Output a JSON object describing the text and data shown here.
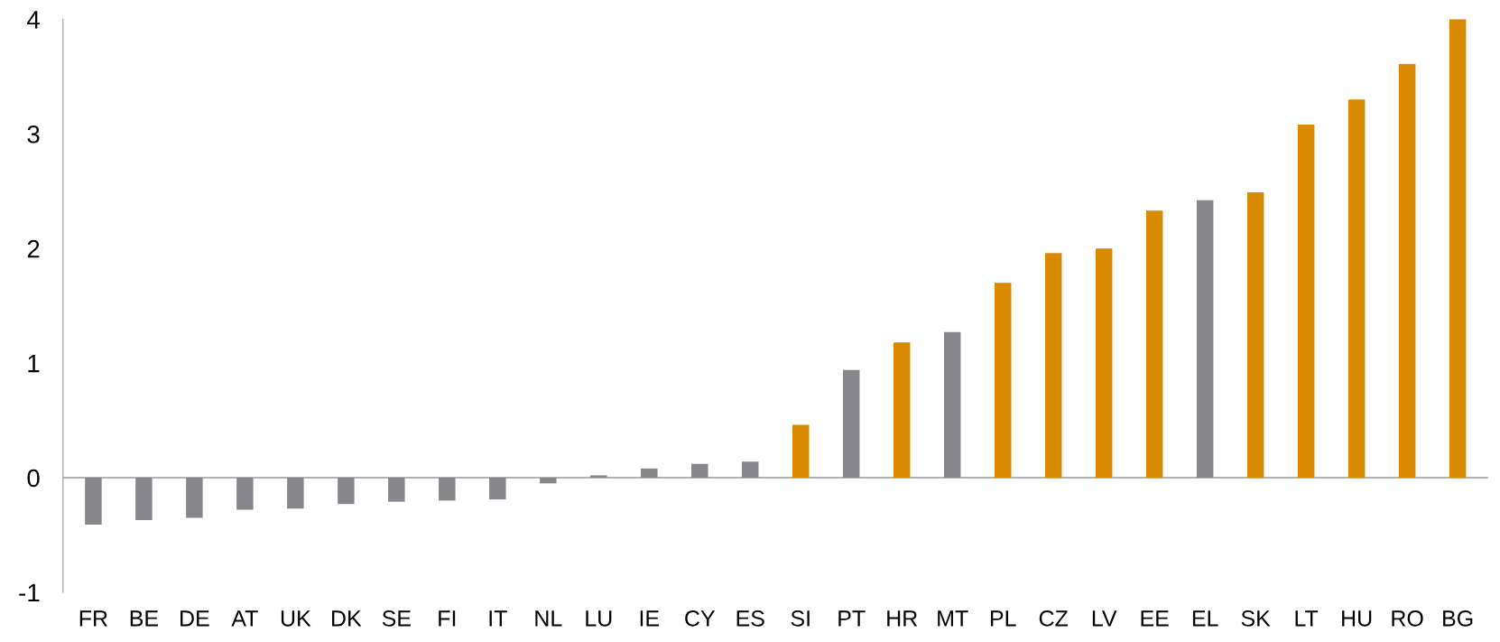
{
  "chart_data": {
    "type": "bar",
    "categories": [
      "FR",
      "BE",
      "DE",
      "AT",
      "UK",
      "DK",
      "SE",
      "FI",
      "IT",
      "NL",
      "LU",
      "IE",
      "CY",
      "ES",
      "SI",
      "PT",
      "HR",
      "MT",
      "PL",
      "CZ",
      "LV",
      "EE",
      "EL",
      "SK",
      "LT",
      "HU",
      "RO",
      "BG"
    ],
    "values": [
      -0.41,
      -0.37,
      -0.35,
      -0.28,
      -0.27,
      -0.23,
      -0.21,
      -0.2,
      -0.19,
      -0.05,
      0.02,
      0.08,
      0.12,
      0.14,
      0.46,
      0.94,
      1.18,
      1.27,
      1.7,
      1.96,
      2.0,
      2.33,
      2.42,
      2.49,
      3.08,
      3.3,
      3.61,
      4.0
    ],
    "colors": [
      "#87868b",
      "#87868b",
      "#87868b",
      "#87868b",
      "#87868b",
      "#87868b",
      "#87868b",
      "#87868b",
      "#87868b",
      "#87868b",
      "#87868b",
      "#87868b",
      "#87868b",
      "#87868b",
      "#d98a00",
      "#87868b",
      "#d98a00",
      "#87868b",
      "#d98a00",
      "#d98a00",
      "#d98a00",
      "#d98a00",
      "#87868b",
      "#d98a00",
      "#d98a00",
      "#d98a00",
      "#d98a00",
      "#d98a00"
    ],
    "ylim": [
      -1,
      4
    ],
    "yticks": [
      -1,
      0,
      1,
      2,
      3,
      4
    ],
    "grid": false,
    "ref_lines": [
      {
        "axis": "y",
        "value": 0,
        "color": "#999999",
        "line_style": "solid"
      }
    ],
    "legend": false
  }
}
